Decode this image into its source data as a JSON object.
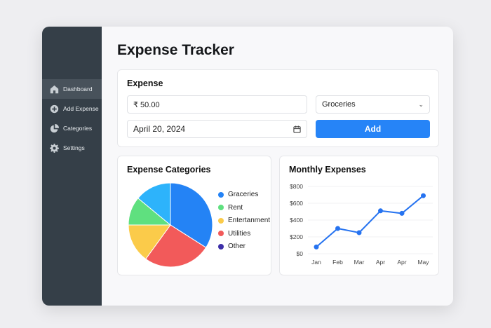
{
  "app": {
    "title": "Expense Tracker"
  },
  "sidebar": {
    "items": [
      {
        "label": "Dashboard",
        "icon": "home-icon",
        "active": true
      },
      {
        "label": "Add Expense",
        "icon": "plus-circle-icon"
      },
      {
        "label": "Categories",
        "icon": "pie-chart-icon"
      },
      {
        "label": "Settings",
        "icon": "gear-icon"
      }
    ]
  },
  "form": {
    "title": "Expense",
    "amount": "₹ 50.00",
    "category": "Groceries",
    "date": "April 20, 2024",
    "add_label": "Add"
  },
  "colors": {
    "accent": "#2684f7",
    "sidebar": "#353f48"
  },
  "chart_data": [
    {
      "type": "pie",
      "title": "Expense Categories",
      "slices": [
        {
          "label": "Graceries",
          "value": 34,
          "color": "#2483f5"
        },
        {
          "label": "Utilities",
          "value": 26,
          "color": "#f25a5a"
        },
        {
          "label": "Entertanment",
          "value": 15,
          "color": "#fbcb4a"
        },
        {
          "label": "Rent",
          "value": 11,
          "color": "#5fe07f"
        },
        {
          "label": "",
          "value": 14,
          "color": "#2db3fb"
        },
        {
          "label": "Other",
          "value": 0,
          "color": "#3d2fa8"
        }
      ],
      "legend": [
        "Graceries",
        "Rent",
        "Entertanment",
        "Utilities",
        "Other"
      ],
      "legend_placement": "right"
    },
    {
      "type": "line",
      "title": "Monthly Expenses",
      "categories": [
        "Jan",
        "Feb",
        "Mar",
        "Apr",
        "Apr",
        "May"
      ],
      "values": [
        80,
        300,
        250,
        510,
        480,
        690
      ],
      "ylim": [
        0,
        800
      ],
      "yticks": [
        "$0",
        "$200",
        "$400",
        "$600",
        "$800"
      ],
      "grid": true,
      "color": "#2673f0"
    }
  ]
}
